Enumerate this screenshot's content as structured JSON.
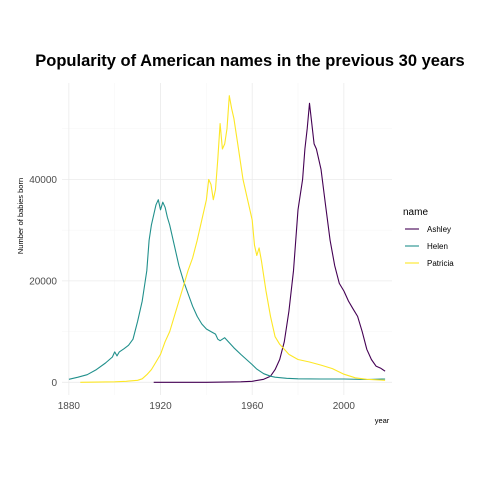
{
  "chart_data": {
    "type": "line",
    "title": "Popularity of American names in the previous 30 years",
    "xlabel": "year",
    "ylabel": "Number of babies born",
    "xlim": [
      1877,
      2021
    ],
    "ylim": [
      -2500,
      59000
    ],
    "x_ticks": [
      1880,
      1920,
      1960,
      2000
    ],
    "x_tick_labels": [
      "1880",
      "1920",
      "1960",
      "2000"
    ],
    "x_minor_ticks": [
      1900,
      1940,
      1980
    ],
    "y_ticks": [
      0,
      20000,
      40000
    ],
    "y_tick_labels": [
      "0",
      "20000",
      "40000"
    ],
    "y_minor_ticks": [
      10000,
      30000,
      50000
    ],
    "grid": true,
    "legend": {
      "title": "name",
      "position": "right"
    },
    "series": [
      {
        "name": "Ashley",
        "color": "#440154",
        "points": [
          [
            1917,
            0
          ],
          [
            1940,
            0
          ],
          [
            1955,
            100
          ],
          [
            1960,
            200
          ],
          [
            1965,
            600
          ],
          [
            1968,
            1200
          ],
          [
            1970,
            2500
          ],
          [
            1972,
            4500
          ],
          [
            1974,
            8000
          ],
          [
            1976,
            14000
          ],
          [
            1978,
            22000
          ],
          [
            1980,
            34000
          ],
          [
            1982,
            40000
          ],
          [
            1983,
            46000
          ],
          [
            1984,
            50000
          ],
          [
            1985,
            55000
          ],
          [
            1986,
            51000
          ],
          [
            1987,
            47000
          ],
          [
            1988,
            46000
          ],
          [
            1990,
            42000
          ],
          [
            1992,
            35000
          ],
          [
            1994,
            28000
          ],
          [
            1996,
            23000
          ],
          [
            1998,
            19500
          ],
          [
            2000,
            18000
          ],
          [
            2002,
            16000
          ],
          [
            2004,
            14500
          ],
          [
            2006,
            13000
          ],
          [
            2008,
            10000
          ],
          [
            2010,
            6500
          ],
          [
            2012,
            4500
          ],
          [
            2014,
            3200
          ],
          [
            2016,
            2800
          ],
          [
            2018,
            2200
          ]
        ]
      },
      {
        "name": "Helen",
        "color": "#21908C",
        "points": [
          [
            1880,
            600
          ],
          [
            1884,
            1000
          ],
          [
            1888,
            1500
          ],
          [
            1892,
            2500
          ],
          [
            1896,
            3800
          ],
          [
            1899,
            5000
          ],
          [
            1900,
            6000
          ],
          [
            1901,
            5200
          ],
          [
            1902,
            6000
          ],
          [
            1904,
            6600
          ],
          [
            1906,
            7300
          ],
          [
            1908,
            8500
          ],
          [
            1910,
            12000
          ],
          [
            1912,
            16000
          ],
          [
            1914,
            22000
          ],
          [
            1915,
            28000
          ],
          [
            1916,
            31000
          ],
          [
            1917,
            33000
          ],
          [
            1918,
            35000
          ],
          [
            1919,
            36000
          ],
          [
            1920,
            34000
          ],
          [
            1921,
            35500
          ],
          [
            1922,
            34500
          ],
          [
            1923,
            32500
          ],
          [
            1924,
            31000
          ],
          [
            1926,
            27000
          ],
          [
            1928,
            23000
          ],
          [
            1930,
            20000
          ],
          [
            1932,
            17500
          ],
          [
            1934,
            15000
          ],
          [
            1936,
            13000
          ],
          [
            1938,
            11500
          ],
          [
            1940,
            10500
          ],
          [
            1942,
            10000
          ],
          [
            1944,
            9500
          ],
          [
            1945,
            8500
          ],
          [
            1946,
            8200
          ],
          [
            1948,
            8800
          ],
          [
            1950,
            7800
          ],
          [
            1952,
            6800
          ],
          [
            1955,
            5500
          ],
          [
            1958,
            4300
          ],
          [
            1960,
            3500
          ],
          [
            1962,
            2600
          ],
          [
            1965,
            1700
          ],
          [
            1968,
            1200
          ],
          [
            1970,
            1000
          ],
          [
            1975,
            800
          ],
          [
            1980,
            700
          ],
          [
            1990,
            650
          ],
          [
            2000,
            650
          ],
          [
            2010,
            550
          ],
          [
            2018,
            650
          ]
        ]
      },
      {
        "name": "Patricia",
        "color": "#FDE725",
        "points": [
          [
            1885,
            0
          ],
          [
            1900,
            100
          ],
          [
            1905,
            200
          ],
          [
            1910,
            400
          ],
          [
            1912,
            700
          ],
          [
            1914,
            1500
          ],
          [
            1916,
            2500
          ],
          [
            1918,
            4000
          ],
          [
            1920,
            5500
          ],
          [
            1922,
            8000
          ],
          [
            1924,
            10000
          ],
          [
            1926,
            13000
          ],
          [
            1928,
            16000
          ],
          [
            1930,
            19000
          ],
          [
            1932,
            22000
          ],
          [
            1934,
            24500
          ],
          [
            1936,
            28000
          ],
          [
            1938,
            32000
          ],
          [
            1940,
            36000
          ],
          [
            1941,
            40000
          ],
          [
            1942,
            39000
          ],
          [
            1943,
            36000
          ],
          [
            1944,
            38000
          ],
          [
            1945,
            44000
          ],
          [
            1946,
            51000
          ],
          [
            1947,
            46000
          ],
          [
            1948,
            47000
          ],
          [
            1949,
            50000
          ],
          [
            1950,
            56500
          ],
          [
            1951,
            54000
          ],
          [
            1952,
            52000
          ],
          [
            1954,
            46000
          ],
          [
            1956,
            40000
          ],
          [
            1958,
            36000
          ],
          [
            1960,
            32000
          ],
          [
            1961,
            27000
          ],
          [
            1962,
            25000
          ],
          [
            1963,
            26500
          ],
          [
            1964,
            24000
          ],
          [
            1966,
            18000
          ],
          [
            1968,
            13000
          ],
          [
            1970,
            9000
          ],
          [
            1972,
            7500
          ],
          [
            1974,
            6500
          ],
          [
            1976,
            5500
          ],
          [
            1980,
            4500
          ],
          [
            1985,
            4000
          ],
          [
            1990,
            3400
          ],
          [
            1995,
            2700
          ],
          [
            2000,
            1600
          ],
          [
            2005,
            900
          ],
          [
            2010,
            600
          ],
          [
            2018,
            400
          ]
        ]
      }
    ]
  }
}
